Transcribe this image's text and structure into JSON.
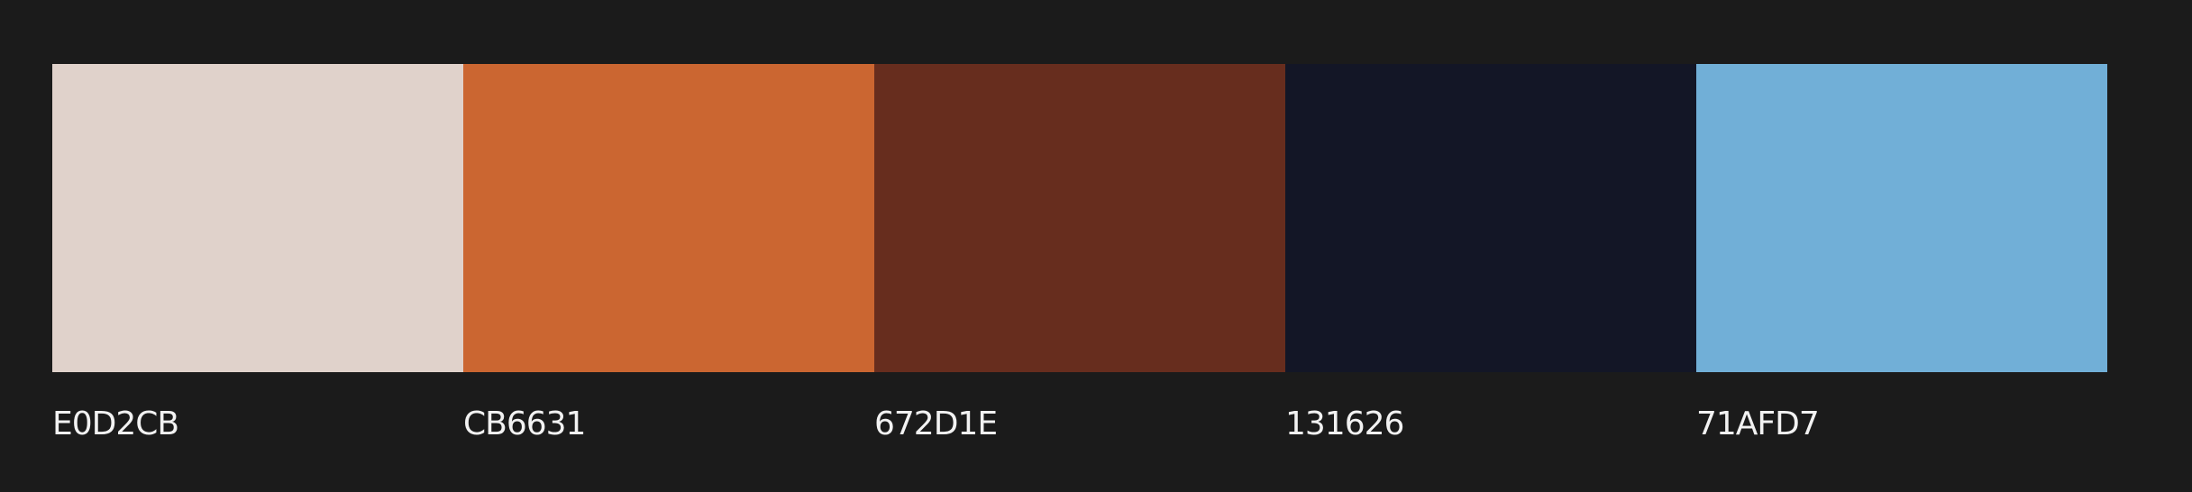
{
  "palette": {
    "colors": [
      {
        "hex": "#E0D2CB",
        "label": "E0D2CB"
      },
      {
        "hex": "#CB6631",
        "label": "CB6631"
      },
      {
        "hex": "#672D1E",
        "label": "672D1E"
      },
      {
        "hex": "#131626",
        "label": "131626"
      },
      {
        "hex": "#71AFD7",
        "label": "71AFD7"
      }
    ]
  }
}
